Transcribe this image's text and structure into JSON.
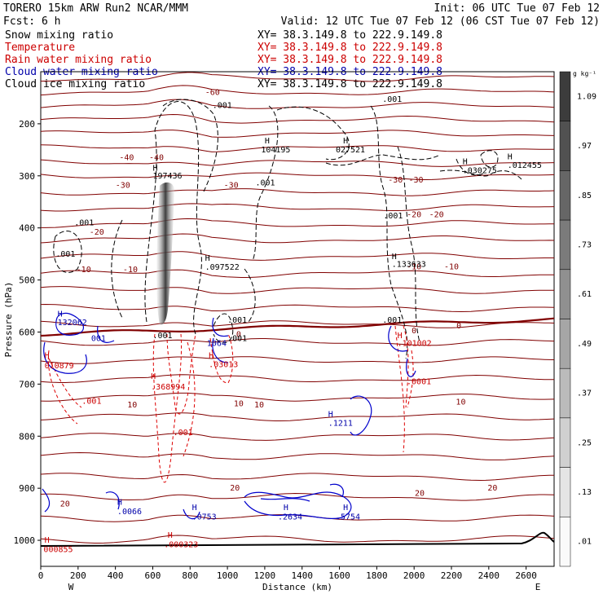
{
  "header": {
    "line1_left": "TORERO  15km ARW   Run2    NCAR/MMM",
    "line1_right": "Init: 06 UTC Tue 07 Feb 12",
    "line2_left": "Fcst:    6 h",
    "line2_right": "Valid: 12 UTC Tue 07 Feb 12 (06 CST Tue 07 Feb 12)"
  },
  "legend": [
    {
      "label": "Snow mixing ratio",
      "color": "#000000",
      "xy": "XY=  38.3.149.8 to 222.9.149.8"
    },
    {
      "label": "Temperature",
      "color": "#cc0000",
      "xy": "XY=  38.3.149.8 to 222.9.149.8"
    },
    {
      "label": "Rain water mixing ratio",
      "color": "#cc0000",
      "xy": "XY=  38.3.149.8 to 222.9.149.8"
    },
    {
      "label": "Cloud water mixing ratio",
      "color": "#0000aa",
      "xy": "XY=  38.3.149.8 to 222.9.149.8"
    },
    {
      "label": "Cloud ice mixing ratio",
      "color": "#000000",
      "xy": "XY=  38.3.149.8 to 222.9.149.8"
    }
  ],
  "colorbar": {
    "unit": "g kg⁻¹",
    "labels": [
      "1.09",
      ".97",
      ".85",
      ".73",
      ".61",
      ".49",
      ".37",
      ".25",
      ".13",
      ".01"
    ]
  },
  "chart_data": {
    "type": "contour-cross-section",
    "xlabel": "Distance (km)",
    "ylabel": "Pressure (hPa)",
    "xlim": [
      0,
      2750
    ],
    "ylim": [
      1050,
      100
    ],
    "x_ticks": [
      0,
      200,
      400,
      600,
      800,
      1000,
      1200,
      1400,
      1600,
      1800,
      2000,
      2200,
      2400,
      2600
    ],
    "y_ticks": [
      200,
      300,
      400,
      500,
      600,
      700,
      800,
      900,
      1000
    ],
    "left_end": "W",
    "right_end": "E",
    "temperature_labels": [
      {
        "t": "-60",
        "x": 920,
        "p": 140
      },
      {
        "t": "-40",
        "x": 460,
        "p": 265
      },
      {
        "t": "-40",
        "x": 620,
        "p": 265
      },
      {
        "t": "-30",
        "x": 440,
        "p": 318
      },
      {
        "t": "-30",
        "x": 1020,
        "p": 318
      },
      {
        "t": "-30",
        "x": 1900,
        "p": 308
      },
      {
        "t": "-30",
        "x": 2010,
        "p": 308
      },
      {
        "t": "-20",
        "x": 300,
        "p": 408
      },
      {
        "t": "-20",
        "x": 2000,
        "p": 375
      },
      {
        "t": "-20",
        "x": 2120,
        "p": 375
      },
      {
        "t": "-10",
        "x": 230,
        "p": 480
      },
      {
        "t": "-10",
        "x": 480,
        "p": 480
      },
      {
        "t": "-10",
        "x": 2000,
        "p": 475
      },
      {
        "t": "-10",
        "x": 2200,
        "p": 475
      },
      {
        "t": "0",
        "x": 1060,
        "p": 605
      },
      {
        "t": "0",
        "x": 2000,
        "p": 598
      },
      {
        "t": "0",
        "x": 2240,
        "p": 588
      },
      {
        "t": "10",
        "x": 490,
        "p": 740
      },
      {
        "t": "10",
        "x": 1060,
        "p": 738
      },
      {
        "t": "10",
        "x": 1170,
        "p": 740
      },
      {
        "t": "10",
        "x": 2250,
        "p": 735
      },
      {
        "t": "20",
        "x": 130,
        "p": 930
      },
      {
        "t": "20",
        "x": 1040,
        "p": 900
      },
      {
        "t": "20",
        "x": 2030,
        "p": 910
      },
      {
        "t": "20",
        "x": 2420,
        "p": 900
      }
    ],
    "maxima_labels": [
      {
        "text": "104195",
        "x": 1180,
        "p": 255,
        "color": "#000000"
      },
      {
        "text": "027521",
        "x": 1580,
        "p": 255,
        "color": "#000000"
      },
      {
        "text": "197436",
        "x": 600,
        "p": 305,
        "color": "#000000"
      },
      {
        "text": ".030275",
        "x": 2260,
        "p": 295,
        "color": "#000000"
      },
      {
        "text": ".012455",
        "x": 2500,
        "p": 285,
        "color": "#000000"
      },
      {
        "text": ".097522",
        "x": 880,
        "p": 480,
        "color": "#000000"
      },
      {
        "text": ".133633",
        "x": 1880,
        "p": 475,
        "color": "#000000"
      },
      {
        "text": ".001",
        "x": 920,
        "p": 170,
        "color": "#000000"
      },
      {
        "text": ".001",
        "x": 1830,
        "p": 158,
        "color": "#000000"
      },
      {
        "text": ".001",
        "x": 1150,
        "p": 318,
        "color": "#000000"
      },
      {
        "text": ".001",
        "x": 180,
        "p": 395,
        "color": "#000000"
      },
      {
        "text": ".001",
        "x": 80,
        "p": 455,
        "color": "#000000"
      },
      {
        "text": ".001",
        "x": 1835,
        "p": 382,
        "color": "#000000"
      },
      {
        "text": ".001",
        "x": 1000,
        "p": 582,
        "color": "#000000"
      },
      {
        "text": ".001",
        "x": 1830,
        "p": 582,
        "color": "#000000"
      },
      {
        "text": "132062",
        "x": 90,
        "p": 587,
        "color": "#0000aa"
      },
      {
        "text": "001",
        "x": 270,
        "p": 617,
        "color": "#0000aa"
      },
      {
        "text": ".001",
        "x": 600,
        "p": 612,
        "color": "#000000"
      },
      {
        "text": ".001",
        "x": 1000,
        "p": 617,
        "color": "#000000"
      },
      {
        "text": "1064",
        "x": 890,
        "p": 627,
        "color": "#0000aa"
      },
      {
        "text": "010879",
        "x": 20,
        "p": 670,
        "color": "#cc0000"
      },
      {
        "text": ".03013",
        "x": 900,
        "p": 667,
        "color": "#cc0000"
      },
      {
        "text": ".101002",
        "x": 1910,
        "p": 627,
        "color": "#cc0000"
      },
      {
        "text": ".368994",
        "x": 590,
        "p": 710,
        "color": "#cc0000"
      },
      {
        "text": ".0001",
        "x": 1960,
        "p": 700,
        "color": "#cc0000"
      },
      {
        "text": ".001",
        "x": 220,
        "p": 738,
        "color": "#cc0000"
      },
      {
        "text": ".001",
        "x": 710,
        "p": 798,
        "color": "#cc0000"
      },
      {
        "text": ".1211",
        "x": 1540,
        "p": 780,
        "color": "#0000aa"
      },
      {
        "text": ".0066",
        "x": 410,
        "p": 950,
        "color": "#0000aa"
      },
      {
        "text": ".0753",
        "x": 810,
        "p": 960,
        "color": "#0000aa"
      },
      {
        "text": ".2634",
        "x": 1270,
        "p": 960,
        "color": "#0000aa"
      },
      {
        "text": ".5754",
        "x": 1580,
        "p": 960,
        "color": "#0000aa"
      },
      {
        "text": "000855",
        "x": 15,
        "p": 1023,
        "color": "#cc0000"
      },
      {
        "text": ".000323",
        "x": 660,
        "p": 1013,
        "color": "#cc0000"
      }
    ],
    "H_markers": [
      {
        "x": 1200,
        "p": 238,
        "color": "#000000"
      },
      {
        "x": 1620,
        "p": 238,
        "color": "#000000"
      },
      {
        "x": 600,
        "p": 290,
        "color": "#000000"
      },
      {
        "x": 2260,
        "p": 278,
        "color": "#000000"
      },
      {
        "x": 2500,
        "p": 268,
        "color": "#000000"
      },
      {
        "x": 880,
        "p": 463,
        "color": "#000000"
      },
      {
        "x": 1880,
        "p": 460,
        "color": "#000000"
      },
      {
        "x": 90,
        "p": 570,
        "color": "#0000aa"
      },
      {
        "x": 20,
        "p": 650,
        "color": "#cc0000"
      },
      {
        "x": 900,
        "p": 650,
        "color": "#cc0000"
      },
      {
        "x": 1910,
        "p": 612,
        "color": "#cc0000"
      },
      {
        "x": 590,
        "p": 690,
        "color": "#cc0000"
      },
      {
        "x": 1540,
        "p": 763,
        "color": "#0000aa"
      },
      {
        "x": 410,
        "p": 932,
        "color": "#0000aa"
      },
      {
        "x": 810,
        "p": 942,
        "color": "#0000aa"
      },
      {
        "x": 1300,
        "p": 942,
        "color": "#0000aa"
      },
      {
        "x": 1620,
        "p": 942,
        "color": "#0000aa"
      },
      {
        "x": 20,
        "p": 1005,
        "color": "#cc0000"
      },
      {
        "x": 680,
        "p": 995,
        "color": "#cc0000"
      }
    ]
  }
}
